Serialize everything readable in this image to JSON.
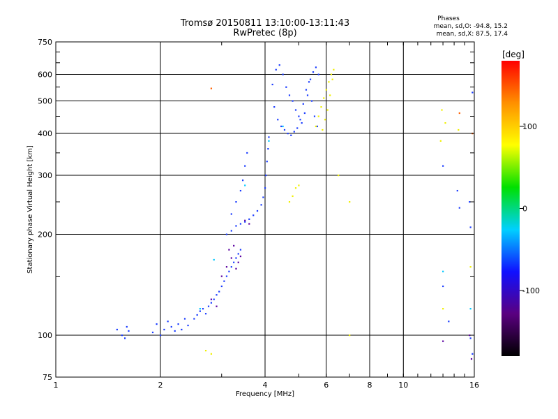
{
  "header": {
    "title_line1": "Tromsø 20150811 13:10:00-13:11:43",
    "title_line2": "RwPretec (8p)",
    "stats_title": "Phases",
    "stats_o": "mean, sd,O: -94.8, 15.2",
    "stats_x": "mean, sd,X:  87.5, 17.4"
  },
  "colorbar": {
    "title": "[deg]",
    "ticks": [
      {
        "value": 100,
        "label": "100"
      },
      {
        "value": 0,
        "label": "0"
      },
      {
        "value": -100,
        "label": "-100"
      }
    ],
    "range": [
      -180,
      180
    ],
    "colors": [
      "#000000",
      "#5a0080",
      "#1010ff",
      "#00d0ff",
      "#00e000",
      "#ffff00",
      "#ff9000",
      "#ff0000"
    ]
  },
  "chart_data": {
    "type": "scatter",
    "title": "Tromsø 20150811 13:10:00-13:11:43",
    "subtitle": "RwPretec (8p)",
    "xlabel": "Frequency [MHz]",
    "ylabel": "Stationary phase Virtual Height [km]",
    "x_scale": "log",
    "y_scale": "log",
    "xlim": [
      1,
      16
    ],
    "ylim": [
      75,
      750
    ],
    "x_ticks": [
      1,
      2,
      4,
      6,
      8,
      10,
      16
    ],
    "y_ticks": [
      75,
      100,
      200,
      300,
      400,
      500,
      600,
      750
    ],
    "grid": true,
    "series": [
      {
        "name": "O",
        "color": "#1a3cff",
        "points": [
          [
            1.5,
            104
          ],
          [
            1.55,
            100
          ],
          [
            1.6,
            106
          ],
          [
            1.62,
            103
          ],
          [
            1.58,
            98
          ],
          [
            1.9,
            102
          ],
          [
            1.95,
            108
          ],
          [
            2.0,
            100
          ],
          [
            2.05,
            104
          ],
          [
            2.1,
            110
          ],
          [
            2.15,
            106
          ],
          [
            2.2,
            103
          ],
          [
            2.25,
            108
          ],
          [
            2.3,
            104
          ],
          [
            2.35,
            112
          ],
          [
            2.4,
            107
          ],
          [
            2.5,
            112
          ],
          [
            2.55,
            115
          ],
          [
            2.6,
            118
          ],
          [
            2.65,
            120
          ],
          [
            2.7,
            116
          ],
          [
            2.75,
            122
          ],
          [
            2.8,
            125
          ],
          [
            2.85,
            128
          ],
          [
            2.9,
            132
          ],
          [
            2.95,
            135
          ],
          [
            3.0,
            140
          ],
          [
            3.05,
            145
          ],
          [
            3.1,
            150
          ],
          [
            3.15,
            155
          ],
          [
            3.2,
            160
          ],
          [
            3.25,
            165
          ],
          [
            3.3,
            170
          ],
          [
            3.35,
            175
          ],
          [
            3.4,
            180
          ],
          [
            3.1,
            200
          ],
          [
            3.2,
            205
          ],
          [
            3.3,
            212
          ],
          [
            3.4,
            215
          ],
          [
            3.5,
            218
          ],
          [
            3.6,
            222
          ],
          [
            3.7,
            228
          ],
          [
            3.8,
            235
          ],
          [
            3.9,
            245
          ],
          [
            3.95,
            258
          ],
          [
            4.0,
            275
          ],
          [
            4.02,
            300
          ],
          [
            4.05,
            330
          ],
          [
            4.08,
            360
          ],
          [
            4.1,
            390
          ],
          [
            3.2,
            230
          ],
          [
            3.3,
            250
          ],
          [
            3.4,
            270
          ],
          [
            3.45,
            290
          ],
          [
            3.5,
            320
          ],
          [
            3.55,
            350
          ],
          [
            4.2,
            560
          ],
          [
            4.3,
            620
          ],
          [
            4.4,
            640
          ],
          [
            4.5,
            600
          ],
          [
            4.6,
            550
          ],
          [
            4.7,
            520
          ],
          [
            4.8,
            500
          ],
          [
            4.9,
            470
          ],
          [
            5.0,
            450
          ],
          [
            5.1,
            430
          ],
          [
            5.2,
            460
          ],
          [
            5.3,
            520
          ],
          [
            5.4,
            580
          ],
          [
            5.5,
            610
          ],
          [
            5.6,
            630
          ],
          [
            5.7,
            600
          ],
          [
            4.25,
            480
          ],
          [
            4.35,
            440
          ],
          [
            4.45,
            420
          ],
          [
            4.55,
            410
          ],
          [
            4.65,
            400
          ],
          [
            4.75,
            395
          ],
          [
            4.85,
            405
          ],
          [
            4.95,
            415
          ],
          [
            5.05,
            440
          ],
          [
            5.15,
            490
          ],
          [
            5.25,
            540
          ],
          [
            5.35,
            570
          ],
          [
            5.45,
            500
          ],
          [
            5.55,
            450
          ],
          [
            5.65,
            420
          ],
          [
            13,
            320
          ],
          [
            14.5,
            240
          ],
          [
            15.5,
            250
          ],
          [
            15.8,
            530
          ],
          [
            15.6,
            210
          ],
          [
            15.8,
            88
          ],
          [
            15.6,
            98
          ],
          [
            13.5,
            110
          ],
          [
            13,
            140
          ],
          [
            14.3,
            270
          ]
        ]
      },
      {
        "name": "X",
        "color": "#f0f000",
        "points": [
          [
            5.6,
            420
          ],
          [
            5.7,
            450
          ],
          [
            5.8,
            480
          ],
          [
            5.9,
            510
          ],
          [
            6.0,
            540
          ],
          [
            6.1,
            570
          ],
          [
            6.2,
            600
          ],
          [
            6.3,
            620
          ],
          [
            6.25,
            580
          ],
          [
            6.15,
            520
          ],
          [
            6.05,
            470
          ],
          [
            5.95,
            440
          ],
          [
            5.85,
            410
          ],
          [
            4.7,
            250
          ],
          [
            4.8,
            260
          ],
          [
            4.9,
            275
          ],
          [
            5.0,
            280
          ],
          [
            6.5,
            300
          ],
          [
            7.0,
            250
          ],
          [
            12.9,
            470
          ],
          [
            13.2,
            430
          ],
          [
            14.4,
            410
          ],
          [
            12.8,
            380
          ],
          [
            15.6,
            160
          ],
          [
            13.0,
            120
          ],
          [
            7.0,
            100
          ],
          [
            2.8,
            88
          ],
          [
            2.7,
            90
          ]
        ]
      },
      {
        "name": "",
        "color": "#5a00a0",
        "points": [
          [
            3.0,
            150
          ],
          [
            3.1,
            160
          ],
          [
            3.2,
            170
          ],
          [
            3.3,
            158
          ],
          [
            3.35,
            165
          ],
          [
            3.4,
            172
          ],
          [
            3.15,
            180
          ],
          [
            3.25,
            185
          ],
          [
            2.8,
            128
          ],
          [
            2.9,
            122
          ],
          [
            3.5,
            220
          ],
          [
            3.6,
            215
          ],
          [
            13,
            96
          ],
          [
            15.5,
            100
          ],
          [
            15.7,
            85
          ]
        ]
      },
      {
        "name": "",
        "color": "#ff6000",
        "points": [
          [
            2.8,
            545
          ],
          [
            15.8,
            400
          ],
          [
            14.5,
            460
          ]
        ]
      },
      {
        "name": "",
        "color": "#00c8ff",
        "points": [
          [
            3.5,
            280
          ],
          [
            4.1,
            380
          ],
          [
            4.5,
            420
          ],
          [
            13.0,
            155
          ],
          [
            15.6,
            120
          ],
          [
            2.6,
            120
          ],
          [
            2.85,
            168
          ]
        ]
      }
    ]
  }
}
